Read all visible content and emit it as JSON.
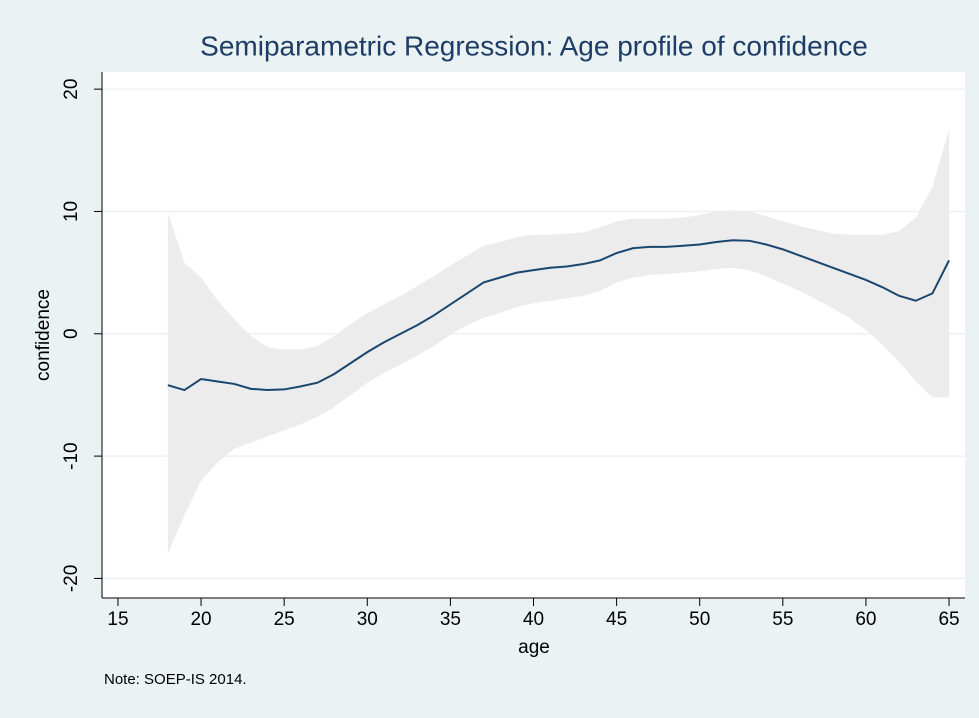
{
  "chart_data": {
    "type": "line",
    "title": "Semiparametric Regression: Age profile of confidence",
    "x_label": "age",
    "y_label": "confidence",
    "note": "Note: SOEP-IS 2014.",
    "x": [
      18,
      19,
      20,
      21,
      22,
      23,
      24,
      25,
      26,
      27,
      28,
      29,
      30,
      31,
      32,
      33,
      34,
      35,
      36,
      37,
      38,
      39,
      40,
      41,
      42,
      43,
      44,
      45,
      46,
      47,
      48,
      49,
      50,
      51,
      52,
      53,
      54,
      55,
      56,
      57,
      58,
      59,
      60,
      61,
      62,
      63,
      64,
      65
    ],
    "series": [
      {
        "color": "#1a476f",
        "values": [
          -4.2,
          -4.6,
          -3.7,
          -3.9,
          -4.1,
          -4.5,
          -4.6,
          -4.55,
          -4.3,
          -4.0,
          -3.3,
          -2.4,
          -1.5,
          -0.7,
          0,
          0.7,
          1.5,
          2.4,
          3.3,
          4.2,
          4.6,
          5.0,
          5.2,
          5.4,
          5.5,
          5.7,
          6.0,
          6.6,
          7.0,
          7.1,
          7.1,
          7.2,
          7.3,
          7.5,
          7.65,
          7.6,
          7.3,
          6.9,
          6.4,
          5.9,
          5.4,
          4.9,
          4.4,
          3.8,
          3.1,
          2.7,
          3.3,
          6.0
        ]
      }
    ],
    "band": {
      "color": "#ececec",
      "upper": [
        9.9,
        5.8,
        4.6,
        2.7,
        1.2,
        -0.2,
        -1.1,
        -1.3,
        -1.3,
        -1.0,
        -0.2,
        0.8,
        1.7,
        2.4,
        3.1,
        3.9,
        4.7,
        5.6,
        6.4,
        7.2,
        7.5,
        7.9,
        8.1,
        8.1,
        8.2,
        8.3,
        8.7,
        9.2,
        9.4,
        9.4,
        9.4,
        9.5,
        9.7,
        10.0,
        10.1,
        10.0,
        9.6,
        9.2,
        8.8,
        8.5,
        8.2,
        8.1,
        8.1,
        8.1,
        8.4,
        9.5,
        12.0,
        16.7
      ],
      "lower": [
        -18.0,
        -14.8,
        -12.0,
        -10.5,
        -9.4,
        -8.9,
        -8.4,
        -7.9,
        -7.4,
        -6.8,
        -6.0,
        -5.0,
        -4.0,
        -3.2,
        -2.5,
        -1.8,
        -1.0,
        -0.1,
        0.7,
        1.3,
        1.7,
        2.2,
        2.5,
        2.7,
        2.9,
        3.1,
        3.5,
        4.2,
        4.6,
        4.8,
        4.9,
        5.0,
        5.1,
        5.3,
        5.4,
        5.2,
        4.7,
        4.1,
        3.5,
        2.8,
        2.1,
        1.3,
        0.3,
        -0.9,
        -2.3,
        -3.9,
        -5.2,
        -5.2
      ]
    },
    "xlim": [
      14.04,
      65.96
    ],
    "xticks": [
      15,
      20,
      25,
      30,
      35,
      40,
      45,
      50,
      55,
      60,
      65
    ],
    "ylim": [
      -21.6,
      21.4
    ],
    "yticks": [
      -20,
      -10,
      0,
      10,
      20
    ],
    "grid": true
  }
}
